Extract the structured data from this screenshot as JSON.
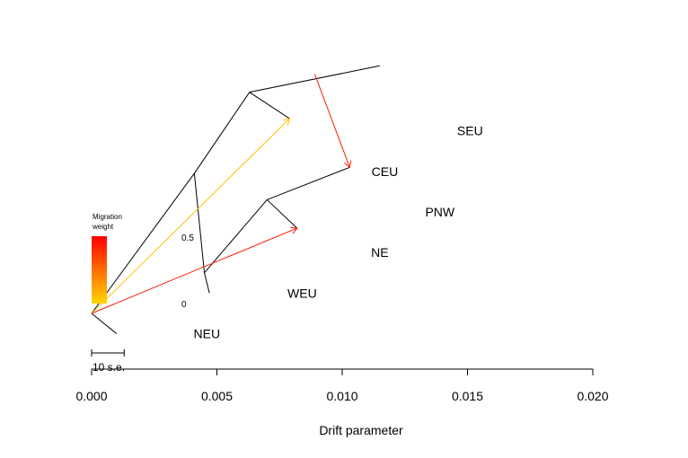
{
  "chart_data": {
    "type": "tree",
    "xlabel": "Drift parameter",
    "xlim": [
      0.0,
      0.02
    ],
    "x_ticks": [
      {
        "value": 0.0,
        "label": "0.000"
      },
      {
        "value": 0.005,
        "label": "0.005"
      },
      {
        "value": 0.01,
        "label": "0.010"
      },
      {
        "value": 0.015,
        "label": "0.015"
      },
      {
        "value": 0.02,
        "label": "0.020"
      }
    ],
    "scale_bar": {
      "label": "10 s.e.",
      "length": 0.0013
    },
    "legend": {
      "title_lines": [
        "Migration",
        "weight"
      ],
      "high_label": "0.5",
      "low_label": "0",
      "color_high": "#ff0000",
      "color_low": "#ffd700"
    },
    "population_order": [
      "NEU",
      "WEU",
      "NE",
      "PNW",
      "CEU",
      "SEU"
    ],
    "nodes": [
      {
        "id": "root",
        "x": 0.0,
        "y": 5.0
      },
      {
        "id": "n1",
        "x": 0.0041,
        "y": 11.9
      },
      {
        "id": "n2",
        "x": 0.0063,
        "y": 15.9
      },
      {
        "id": "n3",
        "x": 0.0045,
        "y": 7.0
      },
      {
        "id": "n4",
        "x": 0.007,
        "y": 10.6
      },
      {
        "id": "NEU",
        "x": 0.001,
        "y": 4.0
      },
      {
        "id": "WEU",
        "x": 0.0047,
        "y": 6.0
      },
      {
        "id": "NE",
        "x": 0.0082,
        "y": 9.2
      },
      {
        "id": "PNW",
        "x": 0.0103,
        "y": 12.2
      },
      {
        "id": "CEU",
        "x": 0.0079,
        "y": 14.6
      },
      {
        "id": "SEU",
        "x": 0.0115,
        "y": 17.2
      }
    ],
    "edges": [
      [
        "root",
        "NEU"
      ],
      [
        "root",
        "n1"
      ],
      [
        "n1",
        "n2"
      ],
      [
        "n2",
        "CEU"
      ],
      [
        "n2",
        "SEU"
      ],
      [
        "n1",
        "n3"
      ],
      [
        "n3",
        "WEU"
      ],
      [
        "n3",
        "n4"
      ],
      [
        "n4",
        "NE"
      ],
      [
        "n4",
        "PNW"
      ]
    ],
    "migrations": [
      {
        "from": {
          "x": 0.0,
          "y": 5.0
        },
        "to": {
          "x": 0.0079,
          "y": 14.6
        },
        "weight": 0.05
      },
      {
        "from": {
          "x": 0.0,
          "y": 5.0
        },
        "to": {
          "x": 0.0082,
          "y": 9.2
        },
        "weight": 0.45
      },
      {
        "from": {
          "x": 0.0089,
          "y": 16.8
        },
        "to": {
          "x": 0.0103,
          "y": 12.2
        },
        "weight": 0.43
      }
    ],
    "tip_labels": [
      {
        "text": "NEU",
        "x": 0.0046,
        "y": 4.0
      },
      {
        "text": "WEU",
        "x": 0.0084,
        "y": 6.0
      },
      {
        "text": "NE",
        "x": 0.0115,
        "y": 8.0
      },
      {
        "text": "PNW",
        "x": 0.0139,
        "y": 10.0
      },
      {
        "text": "CEU",
        "x": 0.0117,
        "y": 12.0
      },
      {
        "text": "SEU",
        "x": 0.0151,
        "y": 14.0
      }
    ]
  }
}
